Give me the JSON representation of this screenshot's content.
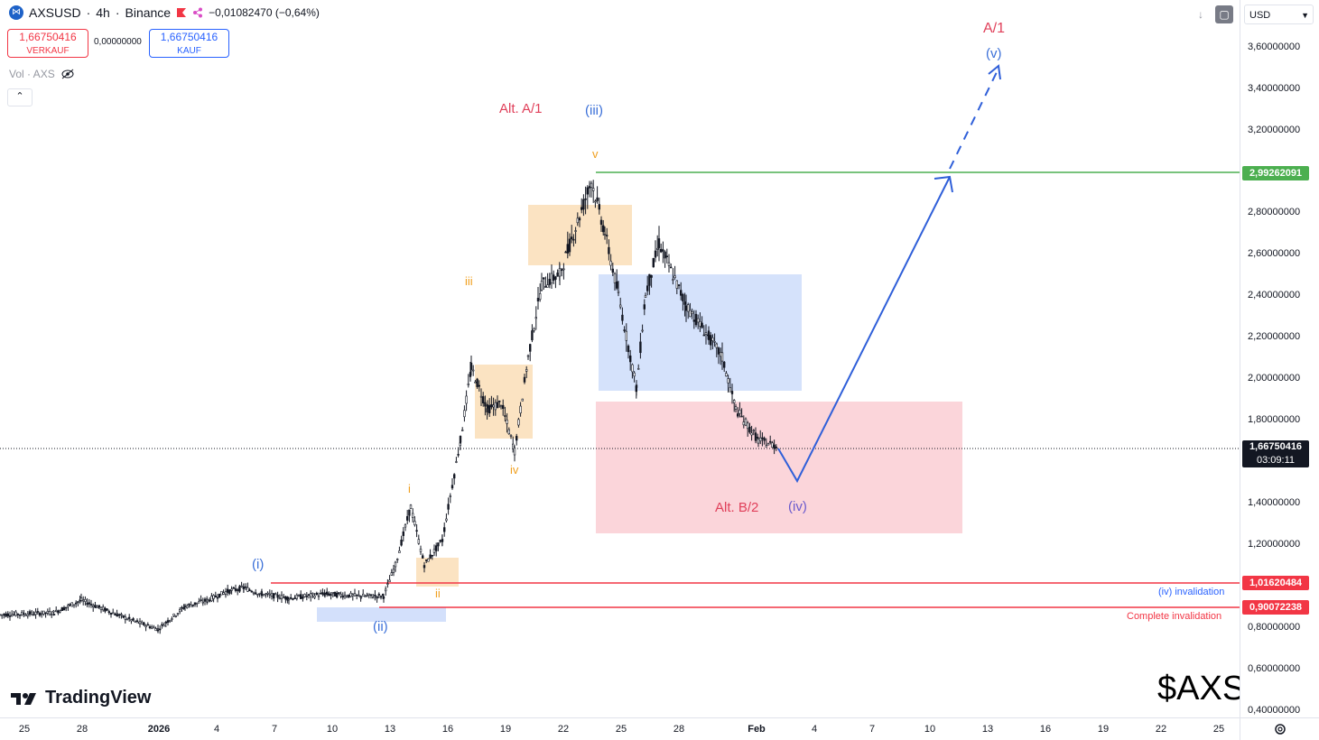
{
  "header": {
    "symbol": "AXSUSD",
    "separator1": "·",
    "timeframe": "4h",
    "separator2": "·",
    "exchange": "Binance",
    "change": "−0,01082470 (−0,64%)"
  },
  "trade": {
    "sell_price": "1,66750416",
    "sell_label": "VERKAUF",
    "spread": "0,00000000",
    "buy_price": "1,66750416",
    "buy_label": "KAUF"
  },
  "volume_label": "Vol · AXS",
  "currency": "USD",
  "price_axis": {
    "ticks": [
      "3,60000000",
      "3,40000000",
      "3,20000000",
      "2,80000000",
      "2,60000000",
      "2,40000000",
      "2,20000000",
      "2,00000000",
      "1,80000000",
      "1,40000000",
      "1,20000000",
      "0,80000000",
      "0,60000000",
      "0,40000000"
    ]
  },
  "price_tags": {
    "target": "2,99262091",
    "current": "1,66750416",
    "countdown": "03:09:11",
    "invalid_iv": "1,01620484",
    "invalid_complete": "0,90072238"
  },
  "time_axis": [
    "25",
    "28",
    "2026",
    "4",
    "7",
    "10",
    "13",
    "16",
    "19",
    "22",
    "25",
    "28",
    "Feb",
    "4",
    "7",
    "10",
    "13",
    "16",
    "19",
    "22",
    "25"
  ],
  "annotations": {
    "alt_a1": "Alt. A/1",
    "iii_blue": "(iii)",
    "v_orange": "v",
    "iii_orange": "iii",
    "iv_orange": "iv",
    "i_orange": "i",
    "ii_orange": "ii",
    "i_blue": "(i)",
    "ii_blue": "(ii)",
    "alt_b2": "Alt. B/2",
    "iv_blue": "(iv)",
    "a1": "A/1",
    "v_blue": "(v)",
    "iv_invalidation": "(iv) invalidation",
    "complete_invalidation": "Complete invalidation"
  },
  "branding": {
    "logo_text": "TradingView",
    "ticker": "$AXS"
  },
  "colors": {
    "bullish_arrow": "#2f5fd9",
    "target_line": "#4caf50",
    "invalidation_line": "#f23645",
    "red_zone": "#fbd5da",
    "blue_zone": "#d3e0fb",
    "orange_zone": "#fbe3c2",
    "wave_orange": "#f0a020",
    "wave_blue": "#3a6fd8",
    "alt_red": "#e0405a"
  },
  "chart_data": {
    "type": "candlestick",
    "symbol": "AXSUSD",
    "interval": "4h",
    "current_price": 1.66750416,
    "levels": {
      "target": 2.99262091,
      "iv_invalidation": 1.01620484,
      "complete_invalidation": 0.90072238
    },
    "close_path": [
      [
        "25",
        0.86
      ],
      [
        "27",
        0.87
      ],
      [
        "28",
        0.93
      ],
      [
        "29",
        0.86
      ],
      [
        "31",
        0.82
      ],
      [
        "2026",
        0.79
      ],
      [
        "2",
        0.9
      ],
      [
        "3",
        0.93
      ],
      [
        "5",
        0.97
      ],
      [
        "6",
        0.99
      ],
      [
        "7",
        0.96
      ],
      [
        "9",
        0.94
      ],
      [
        "11",
        0.96
      ],
      [
        "12",
        0.95
      ],
      [
        "13",
        0.95
      ],
      [
        "13",
        1.1
      ],
      [
        "14",
        1.38
      ],
      [
        "15",
        1.1
      ],
      [
        "16",
        1.22
      ],
      [
        "17",
        1.7
      ],
      [
        "17",
        2.05
      ],
      [
        "18",
        1.85
      ],
      [
        "19",
        1.88
      ],
      [
        "20",
        1.65
      ],
      [
        "21",
        2.1
      ],
      [
        "21",
        2.45
      ],
      [
        "22",
        2.5
      ],
      [
        "23",
        2.95
      ],
      [
        "24",
        2.7
      ],
      [
        "25",
        2.4
      ],
      [
        "25",
        1.95
      ],
      [
        "26",
        2.4
      ],
      [
        "27",
        2.65
      ],
      [
        "28",
        2.35
      ],
      [
        "29",
        2.2
      ],
      [
        "30",
        2.1
      ],
      [
        "31",
        1.85
      ],
      [
        "Feb",
        1.7
      ],
      [
        "2",
        1.67
      ]
    ],
    "projection": [
      [
        "2",
        1.67
      ],
      [
        "3",
        1.52
      ],
      [
        "11",
        2.99
      ],
      [
        "14",
        3.5
      ]
    ],
    "projection_wave_labels": [
      "(iv)",
      "(v)"
    ]
  }
}
